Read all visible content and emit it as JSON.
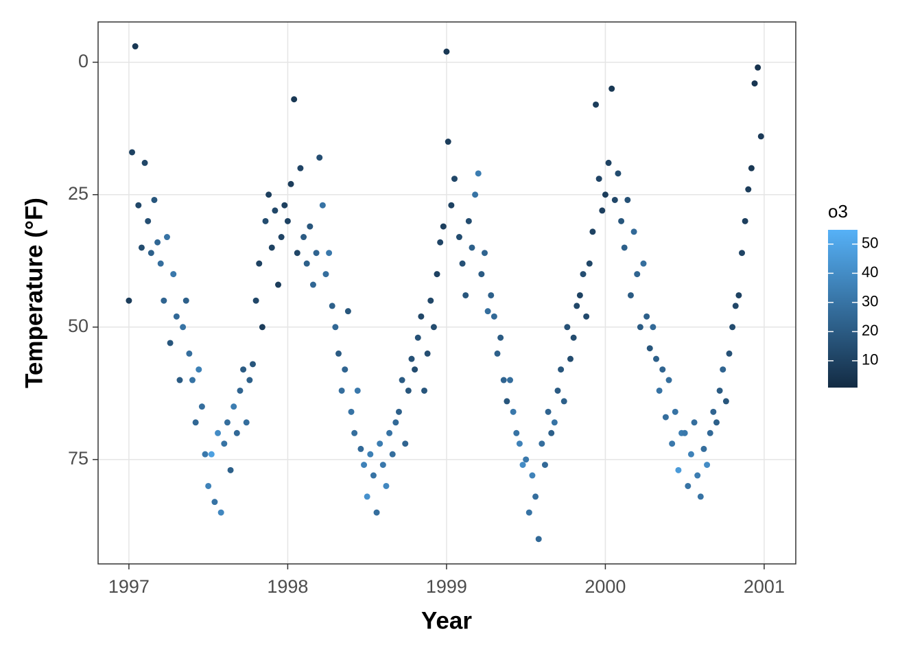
{
  "chart_data": {
    "type": "scatter",
    "x_label": "Year",
    "y_label": "Temperature (°F)",
    "xlim": [
      1996.806,
      2001.199
    ],
    "xticks": [
      1997,
      1998,
      1999,
      2000,
      2001
    ],
    "ylim": [
      -7.6,
      94.7
    ],
    "yticks": [
      0,
      25,
      50,
      75
    ],
    "y_reverse": true,
    "grid": true,
    "colorbar": {
      "title": "o3",
      "lim": [
        0.8,
        54.9
      ],
      "ticks": [
        10,
        20,
        30,
        40,
        50
      ],
      "low": "#132B43",
      "high": "#56B1F7"
    },
    "x": [
      1997.0,
      1997.02,
      1997.04,
      1997.06,
      1997.08,
      1997.1,
      1997.12,
      1997.14,
      1997.16,
      1997.18,
      1997.2,
      1997.22,
      1997.24,
      1997.26,
      1997.28,
      1997.3,
      1997.32,
      1997.34,
      1997.36,
      1997.38,
      1997.4,
      1997.42,
      1997.44,
      1997.46,
      1997.48,
      1997.5,
      1997.52,
      1997.54,
      1997.56,
      1997.58,
      1997.6,
      1997.62,
      1997.64,
      1997.66,
      1997.68,
      1997.7,
      1997.72,
      1997.74,
      1997.76,
      1997.78,
      1997.8,
      1997.82,
      1997.84,
      1997.86,
      1997.88,
      1997.9,
      1997.92,
      1997.94,
      1997.96,
      1997.98,
      1998.0,
      1998.02,
      1998.04,
      1998.06,
      1998.08,
      1998.1,
      1998.12,
      1998.14,
      1998.16,
      1998.18,
      1998.2,
      1998.22,
      1998.24,
      1998.26,
      1998.28,
      1998.3,
      1998.32,
      1998.34,
      1998.36,
      1998.38,
      1998.4,
      1998.42,
      1998.44,
      1998.46,
      1998.48,
      1998.5,
      1998.52,
      1998.54,
      1998.56,
      1998.58,
      1998.6,
      1998.62,
      1998.64,
      1998.66,
      1998.68,
      1998.7,
      1998.72,
      1998.74,
      1998.76,
      1998.78,
      1998.8,
      1998.82,
      1998.84,
      1998.86,
      1998.88,
      1998.9,
      1998.92,
      1998.94,
      1998.96,
      1998.98,
      1999.0,
      1999.01,
      1999.03,
      1999.05,
      1999.08,
      1999.1,
      1999.12,
      1999.14,
      1999.16,
      1999.18,
      1999.2,
      1999.22,
      1999.24,
      1999.26,
      1999.28,
      1999.3,
      1999.32,
      1999.34,
      1999.36,
      1999.38,
      1999.4,
      1999.42,
      1999.44,
      1999.46,
      1999.48,
      1999.5,
      1999.52,
      1999.54,
      1999.56,
      1999.58,
      1999.6,
      1999.62,
      1999.64,
      1999.66,
      1999.68,
      1999.7,
      1999.72,
      1999.74,
      1999.76,
      1999.78,
      1999.8,
      1999.82,
      1999.84,
      1999.86,
      1999.88,
      1999.9,
      1999.92,
      1999.94,
      1999.96,
      1999.98,
      2000.0,
      2000.02,
      2000.04,
      2000.06,
      2000.08,
      2000.1,
      2000.12,
      2000.14,
      2000.16,
      2000.18,
      2000.2,
      2000.22,
      2000.24,
      2000.26,
      2000.28,
      2000.3,
      2000.32,
      2000.34,
      2000.36,
      2000.38,
      2000.4,
      2000.42,
      2000.44,
      2000.46,
      2000.48,
      2000.5,
      2000.52,
      2000.54,
      2000.56,
      2000.58,
      2000.6,
      2000.62,
      2000.64,
      2000.66,
      2000.68,
      2000.7,
      2000.72,
      2000.74,
      2000.76,
      2000.78,
      2000.8,
      2000.82,
      2000.84,
      2000.86,
      2000.88,
      2000.9,
      2000.92,
      2000.94,
      2000.96,
      2000.98
    ],
    "values": [
      45,
      17,
      -3,
      27,
      35,
      19,
      30,
      36,
      26,
      34,
      38,
      45,
      33,
      53,
      40,
      48,
      60,
      50,
      45,
      55,
      60,
      68,
      58,
      65,
      74,
      80,
      74,
      83,
      70,
      85,
      72,
      68,
      77,
      65,
      70,
      62,
      58,
      68,
      60,
      57,
      45,
      38,
      50,
      30,
      25,
      35,
      28,
      42,
      33,
      27,
      30,
      23,
      7,
      36,
      20,
      33,
      38,
      31,
      42,
      36,
      18,
      27,
      40,
      36,
      46,
      50,
      55,
      62,
      58,
      47,
      66,
      70,
      62,
      73,
      76,
      82,
      74,
      78,
      85,
      72,
      76,
      80,
      70,
      74,
      68,
      66,
      60,
      72,
      62,
      56,
      58,
      52,
      48,
      62,
      55,
      45,
      50,
      40,
      34,
      31,
      -2,
      15,
      27,
      22,
      33,
      38,
      44,
      30,
      35,
      25,
      21,
      40,
      36,
      47,
      44,
      48,
      55,
      52,
      60,
      64,
      60,
      66,
      70,
      72,
      76,
      75,
      85,
      78,
      82,
      90,
      72,
      76,
      66,
      70,
      68,
      62,
      58,
      64,
      50,
      56,
      52,
      46,
      44,
      40,
      48,
      38,
      32,
      8,
      22,
      28,
      25,
      19,
      5,
      26,
      21,
      30,
      35,
      26,
      44,
      32,
      40,
      50,
      38,
      48,
      54,
      50,
      56,
      62,
      58,
      67,
      60,
      72,
      66,
      77,
      70,
      70,
      80,
      74,
      68,
      78,
      82,
      73,
      76,
      70,
      66,
      68,
      62,
      58,
      64,
      55,
      50,
      46,
      44,
      36,
      30,
      24,
      20,
      4,
      1,
      14
    ],
    "color_values": [
      8,
      10,
      6,
      12,
      14,
      12,
      15,
      22,
      18,
      25,
      28,
      24,
      30,
      18,
      32,
      26,
      20,
      30,
      22,
      28,
      30,
      25,
      35,
      28,
      32,
      36,
      48,
      30,
      40,
      38,
      30,
      28,
      22,
      34,
      26,
      24,
      20,
      28,
      22,
      18,
      12,
      10,
      8,
      14,
      9,
      10,
      12,
      8,
      11,
      9,
      10,
      8,
      6,
      12,
      11,
      20,
      22,
      18,
      25,
      24,
      15,
      30,
      28,
      32,
      22,
      25,
      20,
      28,
      24,
      18,
      30,
      28,
      32,
      26,
      36,
      42,
      35,
      30,
      28,
      34,
      32,
      38,
      30,
      28,
      26,
      22,
      20,
      24,
      18,
      16,
      14,
      16,
      12,
      18,
      15,
      12,
      14,
      10,
      11,
      9,
      6,
      8,
      10,
      12,
      14,
      16,
      18,
      14,
      22,
      30,
      34,
      20,
      24,
      28,
      22,
      26,
      22,
      20,
      24,
      18,
      28,
      32,
      30,
      36,
      40,
      32,
      30,
      36,
      28,
      26,
      28,
      26,
      24,
      22,
      30,
      20,
      18,
      22,
      16,
      14,
      14,
      12,
      10,
      15,
      13,
      12,
      10,
      8,
      11,
      9,
      8,
      10,
      6,
      12,
      14,
      18,
      22,
      16,
      20,
      26,
      24,
      20,
      28,
      22,
      18,
      26,
      22,
      30,
      24,
      28,
      28,
      32,
      30,
      46,
      34,
      32,
      30,
      36,
      28,
      34,
      30,
      28,
      40,
      26,
      24,
      22,
      20,
      24,
      18,
      16,
      14,
      12,
      10,
      11,
      9,
      8,
      6,
      5,
      4,
      7
    ]
  }
}
